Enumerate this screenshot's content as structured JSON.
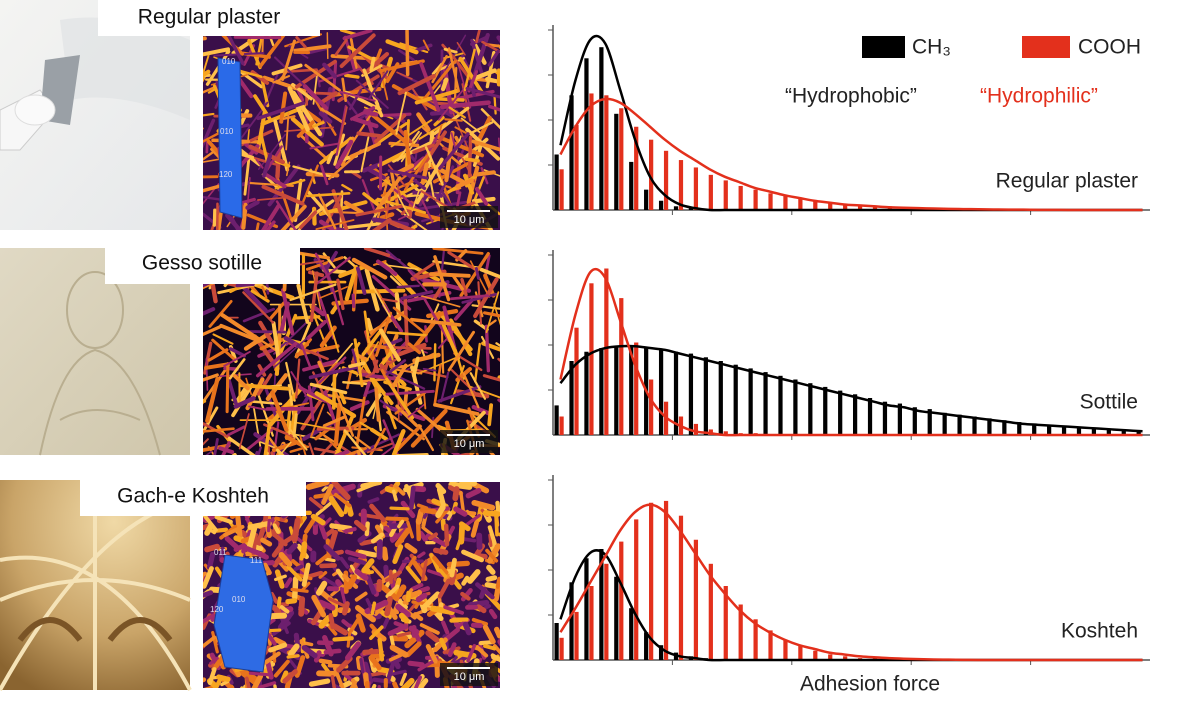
{
  "panels": [
    {
      "label": "Regular plaster",
      "scale_bar": "10 μm",
      "crystal_faces": [
        "010",
        "120"
      ]
    },
    {
      "label": "Gesso sotille",
      "scale_bar": "10 μm"
    },
    {
      "label": "Gach-e Koshteh",
      "scale_bar": "10 μm",
      "crystal_faces": [
        "011",
        "111",
        "010",
        "120"
      ]
    }
  ],
  "chart_data": [
    {
      "type": "histogram",
      "title": "Regular plaster",
      "legend": "upper right",
      "annotations": [
        "“Hydrophobic”",
        "“Hydrophilic”"
      ],
      "bins": [
        0,
        1,
        2,
        3,
        4,
        5,
        6,
        7,
        8,
        9,
        10,
        11,
        12,
        13,
        14,
        15,
        16,
        17,
        18,
        19,
        20,
        21,
        22,
        23,
        24,
        25,
        26,
        27,
        28,
        29,
        30,
        31,
        32,
        33,
        34,
        35,
        36,
        37,
        38,
        39,
        40
      ],
      "xlim": [
        0,
        40
      ],
      "ylim": [
        0,
        100
      ],
      "series": [
        {
          "name": "CH₃",
          "color": "#000000",
          "values": [
            30,
            62,
            82,
            88,
            52,
            26,
            11,
            5,
            2,
            1,
            0,
            0,
            0,
            0,
            0,
            0,
            0,
            0,
            0,
            0,
            0,
            0,
            0,
            0,
            0,
            0,
            0,
            0,
            0,
            0,
            0,
            0,
            0,
            0,
            0,
            0,
            0,
            0,
            0,
            0
          ],
          "fit": [
            35,
            70,
            92,
            90,
            65,
            38,
            18,
            8,
            3,
            1,
            0,
            0,
            0,
            0,
            0,
            0,
            0,
            0,
            0,
            0,
            0,
            0,
            0,
            0,
            0,
            0,
            0,
            0,
            0,
            0,
            0,
            0,
            0,
            0,
            0,
            0,
            0,
            0,
            0,
            0
          ]
        },
        {
          "name": "COOH",
          "color": "#e3301c",
          "values": [
            22,
            46,
            63,
            62,
            55,
            45,
            38,
            32,
            27,
            23,
            19,
            16,
            13,
            11,
            9,
            8,
            6,
            5,
            4,
            3,
            3,
            2,
            2,
            1,
            1,
            1,
            1,
            1,
            0,
            0,
            0,
            0,
            0,
            0,
            0,
            0,
            0,
            0,
            0,
            0
          ],
          "fit": [
            30,
            45,
            56,
            60,
            58,
            52,
            45,
            38,
            32,
            27,
            22,
            18,
            15,
            12,
            10,
            8,
            6.5,
            5,
            4,
            3,
            2.5,
            2,
            1.5,
            1.2,
            1,
            0.8,
            0.6,
            0.5,
            0.4,
            0.3,
            0.2,
            0.2,
            0.1,
            0.1,
            0,
            0,
            0,
            0,
            0,
            0
          ]
        }
      ]
    },
    {
      "type": "histogram",
      "title": "Sottile",
      "bins": [
        0,
        1,
        2,
        3,
        4,
        5,
        6,
        7,
        8,
        9,
        10,
        11,
        12,
        13,
        14,
        15,
        16,
        17,
        18,
        19,
        20,
        21,
        22,
        23,
        24,
        25,
        26,
        27,
        28,
        29,
        30,
        31,
        32,
        33,
        34,
        35,
        36,
        37,
        38,
        39,
        40
      ],
      "xlim": [
        0,
        40
      ],
      "ylim": [
        0,
        100
      ],
      "series": [
        {
          "color": "#000000",
          "values": [
            16,
            40,
            45,
            47,
            48,
            48,
            47,
            46,
            45,
            44,
            42,
            40,
            38,
            36,
            34,
            32,
            30,
            28,
            26,
            24,
            22,
            20,
            18,
            17,
            15,
            14,
            12,
            11,
            10,
            9,
            8,
            7,
            6,
            5,
            5,
            4,
            4,
            3,
            3,
            2
          ],
          "fit": [
            28,
            38,
            44,
            47,
            48,
            48,
            47,
            46,
            44,
            42,
            40,
            38,
            36,
            34,
            32,
            30,
            28,
            26,
            24,
            22,
            20,
            18,
            16,
            15,
            13,
            12,
            11,
            10,
            9,
            8,
            7,
            6,
            5.5,
            5,
            4.5,
            4,
            3.5,
            3,
            2.5,
            2
          ]
        },
        {
          "color": "#e3301c",
          "values": [
            10,
            58,
            82,
            90,
            74,
            50,
            30,
            18,
            10,
            6,
            3,
            2,
            1,
            1,
            0,
            0,
            0,
            0,
            0,
            0,
            0,
            0,
            0,
            0,
            0,
            0,
            0,
            0,
            0,
            0,
            0,
            0,
            0,
            0,
            0,
            0,
            0,
            0,
            0,
            0
          ],
          "fit": [
            30,
            65,
            88,
            85,
            62,
            38,
            20,
            10,
            5,
            2,
            1,
            0,
            0,
            0,
            0,
            0,
            0,
            0,
            0,
            0,
            0,
            0,
            0,
            0,
            0,
            0,
            0,
            0,
            0,
            0,
            0,
            0,
            0,
            0,
            0,
            0,
            0,
            0,
            0,
            0
          ]
        }
      ]
    },
    {
      "type": "histogram",
      "title": "Koshteh",
      "xlabel": "Adhesion force",
      "bins": [
        0,
        1,
        2,
        3,
        4,
        5,
        6,
        7,
        8,
        9,
        10,
        11,
        12,
        13,
        14,
        15,
        16,
        17,
        18,
        19,
        20,
        21,
        22,
        23,
        24,
        25,
        26,
        27,
        28,
        29,
        30,
        31,
        32,
        33,
        34,
        35,
        36,
        37,
        38,
        39,
        40
      ],
      "xlim": [
        0,
        40
      ],
      "ylim": [
        0,
        100
      ],
      "series": [
        {
          "color": "#000000",
          "values": [
            20,
            42,
            55,
            60,
            45,
            28,
            15,
            8,
            4,
            2,
            1,
            0,
            0,
            0,
            0,
            0,
            0,
            0,
            0,
            0,
            0,
            0,
            0,
            0,
            0,
            0,
            0,
            0,
            0,
            0,
            0,
            0,
            0,
            0,
            0,
            0,
            0,
            0,
            0,
            0
          ],
          "fit": [
            22,
            45,
            58,
            57,
            42,
            25,
            12,
            5,
            2,
            1,
            0,
            0,
            0,
            0,
            0,
            0,
            0,
            0,
            0,
            0,
            0,
            0,
            0,
            0,
            0,
            0,
            0,
            0,
            0,
            0,
            0,
            0,
            0,
            0,
            0,
            0,
            0,
            0,
            0,
            0
          ]
        },
        {
          "color": "#e3301c",
          "values": [
            12,
            26,
            40,
            52,
            64,
            76,
            85,
            86,
            78,
            65,
            52,
            40,
            30,
            22,
            16,
            11,
            8,
            5,
            3,
            2,
            1,
            1,
            0,
            0,
            0,
            0,
            0,
            0,
            0,
            0,
            0,
            0,
            0,
            0,
            0,
            0,
            0,
            0,
            0,
            0
          ],
          "fit": [
            15,
            28,
            42,
            56,
            70,
            80,
            84,
            80,
            70,
            58,
            46,
            36,
            27,
            20,
            15,
            11,
            8,
            6,
            4,
            3,
            2,
            1.5,
            1,
            0.7,
            0.5,
            0.3,
            0.2,
            0.1,
            0,
            0,
            0,
            0,
            0,
            0,
            0,
            0,
            0,
            0,
            0,
            0
          ]
        }
      ]
    }
  ]
}
